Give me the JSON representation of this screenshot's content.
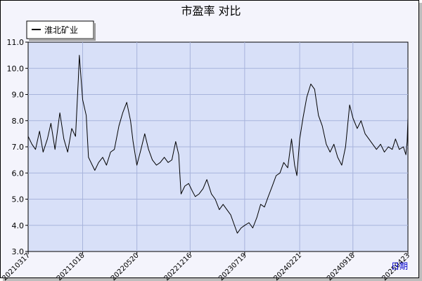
{
  "chart_data": {
    "type": "line",
    "title": "市盈率  对比",
    "xlabel": "日期",
    "ylabel": "",
    "ylim": [
      3.0,
      11.0
    ],
    "yticks": [
      "3.0",
      "4.0",
      "5.0",
      "6.0",
      "7.0",
      "8.0",
      "9.0",
      "10.0",
      "11.0"
    ],
    "xticks": [
      "20210317",
      "20211018",
      "20220520",
      "20221216",
      "20230719",
      "20240221",
      "20240918",
      "20250423"
    ],
    "grid": true,
    "legend": {
      "position": "top-left",
      "entries": [
        "淮北矿业"
      ]
    },
    "series": [
      {
        "name": "淮北矿业",
        "color": "#000000",
        "points": [
          [
            "20210317",
            7.4
          ],
          [
            "20210401",
            7.1
          ],
          [
            "20210415",
            6.9
          ],
          [
            "20210501",
            7.6
          ],
          [
            "20210515",
            6.8
          ],
          [
            "20210601",
            7.3
          ],
          [
            "20210615",
            7.9
          ],
          [
            "20210701",
            6.9
          ],
          [
            "20210720",
            8.3
          ],
          [
            "20210805",
            7.3
          ],
          [
            "20210820",
            6.8
          ],
          [
            "20210905",
            7.7
          ],
          [
            "20210920",
            7.4
          ],
          [
            "20211001",
            9.6
          ],
          [
            "20211005",
            10.5
          ],
          [
            "20211018",
            8.8
          ],
          [
            "20211101",
            8.2
          ],
          [
            "20211110",
            6.6
          ],
          [
            "20211125",
            6.3
          ],
          [
            "20211205",
            6.1
          ],
          [
            "20211220",
            6.4
          ],
          [
            "20220105",
            6.6
          ],
          [
            "20220120",
            6.3
          ],
          [
            "20220205",
            6.8
          ],
          [
            "20220220",
            6.9
          ],
          [
            "20220310",
            7.8
          ],
          [
            "20220325",
            8.3
          ],
          [
            "20220410",
            8.7
          ],
          [
            "20220425",
            8.0
          ],
          [
            "20220505",
            7.2
          ],
          [
            "20220520",
            6.3
          ],
          [
            "20220605",
            6.9
          ],
          [
            "20220620",
            7.5
          ],
          [
            "20220705",
            6.9
          ],
          [
            "20220720",
            6.5
          ],
          [
            "20220805",
            6.3
          ],
          [
            "20220820",
            6.4
          ],
          [
            "20220905",
            6.6
          ],
          [
            "20220920",
            6.4
          ],
          [
            "20221005",
            6.5
          ],
          [
            "20221020",
            7.2
          ],
          [
            "20221101",
            6.7
          ],
          [
            "20221110",
            5.2
          ],
          [
            "20221125",
            5.5
          ],
          [
            "20221210",
            5.6
          ],
          [
            "20221225",
            5.3
          ],
          [
            "20230105",
            5.1
          ],
          [
            "20230120",
            5.2
          ],
          [
            "20230205",
            5.4
          ],
          [
            "20230220",
            5.75
          ],
          [
            "20230310",
            5.2
          ],
          [
            "20230325",
            5.0
          ],
          [
            "20230410",
            4.6
          ],
          [
            "20230425",
            4.8
          ],
          [
            "20230510",
            4.6
          ],
          [
            "20230525",
            4.4
          ],
          [
            "20230605",
            4.1
          ],
          [
            "20230620",
            3.7
          ],
          [
            "20230705",
            3.9
          ],
          [
            "20230719",
            4.0
          ],
          [
            "20230805",
            4.1
          ],
          [
            "20230820",
            3.9
          ],
          [
            "20230905",
            4.3
          ],
          [
            "20230920",
            4.8
          ],
          [
            "20231005",
            4.7
          ],
          [
            "20231020",
            5.1
          ],
          [
            "20231105",
            5.5
          ],
          [
            "20231120",
            5.9
          ],
          [
            "20231205",
            6.0
          ],
          [
            "20231220",
            6.4
          ],
          [
            "20240105",
            6.2
          ],
          [
            "20240120",
            7.3
          ],
          [
            "20240201",
            6.3
          ],
          [
            "20240210",
            5.9
          ],
          [
            "20240221",
            7.3
          ],
          [
            "20240305",
            8.1
          ],
          [
            "20240320",
            8.9
          ],
          [
            "20240405",
            9.4
          ],
          [
            "20240420",
            9.2
          ],
          [
            "20240505",
            8.2
          ],
          [
            "20240520",
            7.8
          ],
          [
            "20240605",
            7.1
          ],
          [
            "20240620",
            6.8
          ],
          [
            "20240705",
            7.1
          ],
          [
            "20240720",
            6.6
          ],
          [
            "20240805",
            6.3
          ],
          [
            "20240820",
            7.0
          ],
          [
            "20240905",
            8.6
          ],
          [
            "20240918",
            8.1
          ],
          [
            "20241005",
            7.7
          ],
          [
            "20241020",
            8.0
          ],
          [
            "20241105",
            7.5
          ],
          [
            "20241120",
            7.3
          ],
          [
            "20241205",
            7.1
          ],
          [
            "20241220",
            6.9
          ],
          [
            "20250105",
            7.1
          ],
          [
            "20250120",
            6.8
          ],
          [
            "20250205",
            7.0
          ],
          [
            "20250220",
            6.9
          ],
          [
            "20250305",
            7.3
          ],
          [
            "20250320",
            6.9
          ],
          [
            "20250405",
            7.0
          ],
          [
            "20250415",
            6.7
          ],
          [
            "20250420",
            7.2
          ],
          [
            "20250423",
            8.1
          ]
        ]
      }
    ]
  }
}
